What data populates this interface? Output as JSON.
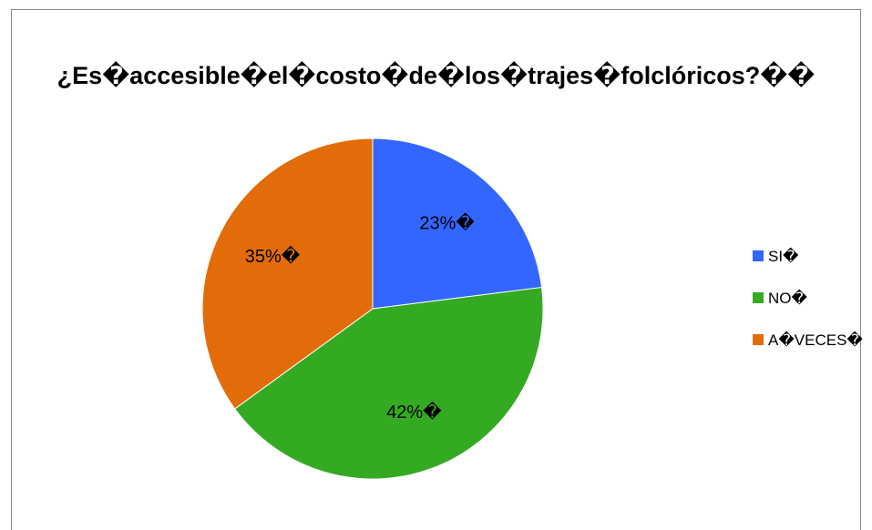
{
  "chart_data": {
    "type": "pie",
    "title": "¿Es�accesible�el�costo�de�los�trajes�folclóricos?��",
    "slices": [
      {
        "name": "SI�",
        "value": 23,
        "label": "23%�",
        "color": "#3366ff"
      },
      {
        "name": "NO�",
        "value": 42,
        "label": "42%�",
        "color": "#33aa22"
      },
      {
        "name": "A�VECES�",
        "value": 35,
        "label": "35%�",
        "color": "#e36c0a"
      }
    ],
    "legend_position": "right"
  }
}
